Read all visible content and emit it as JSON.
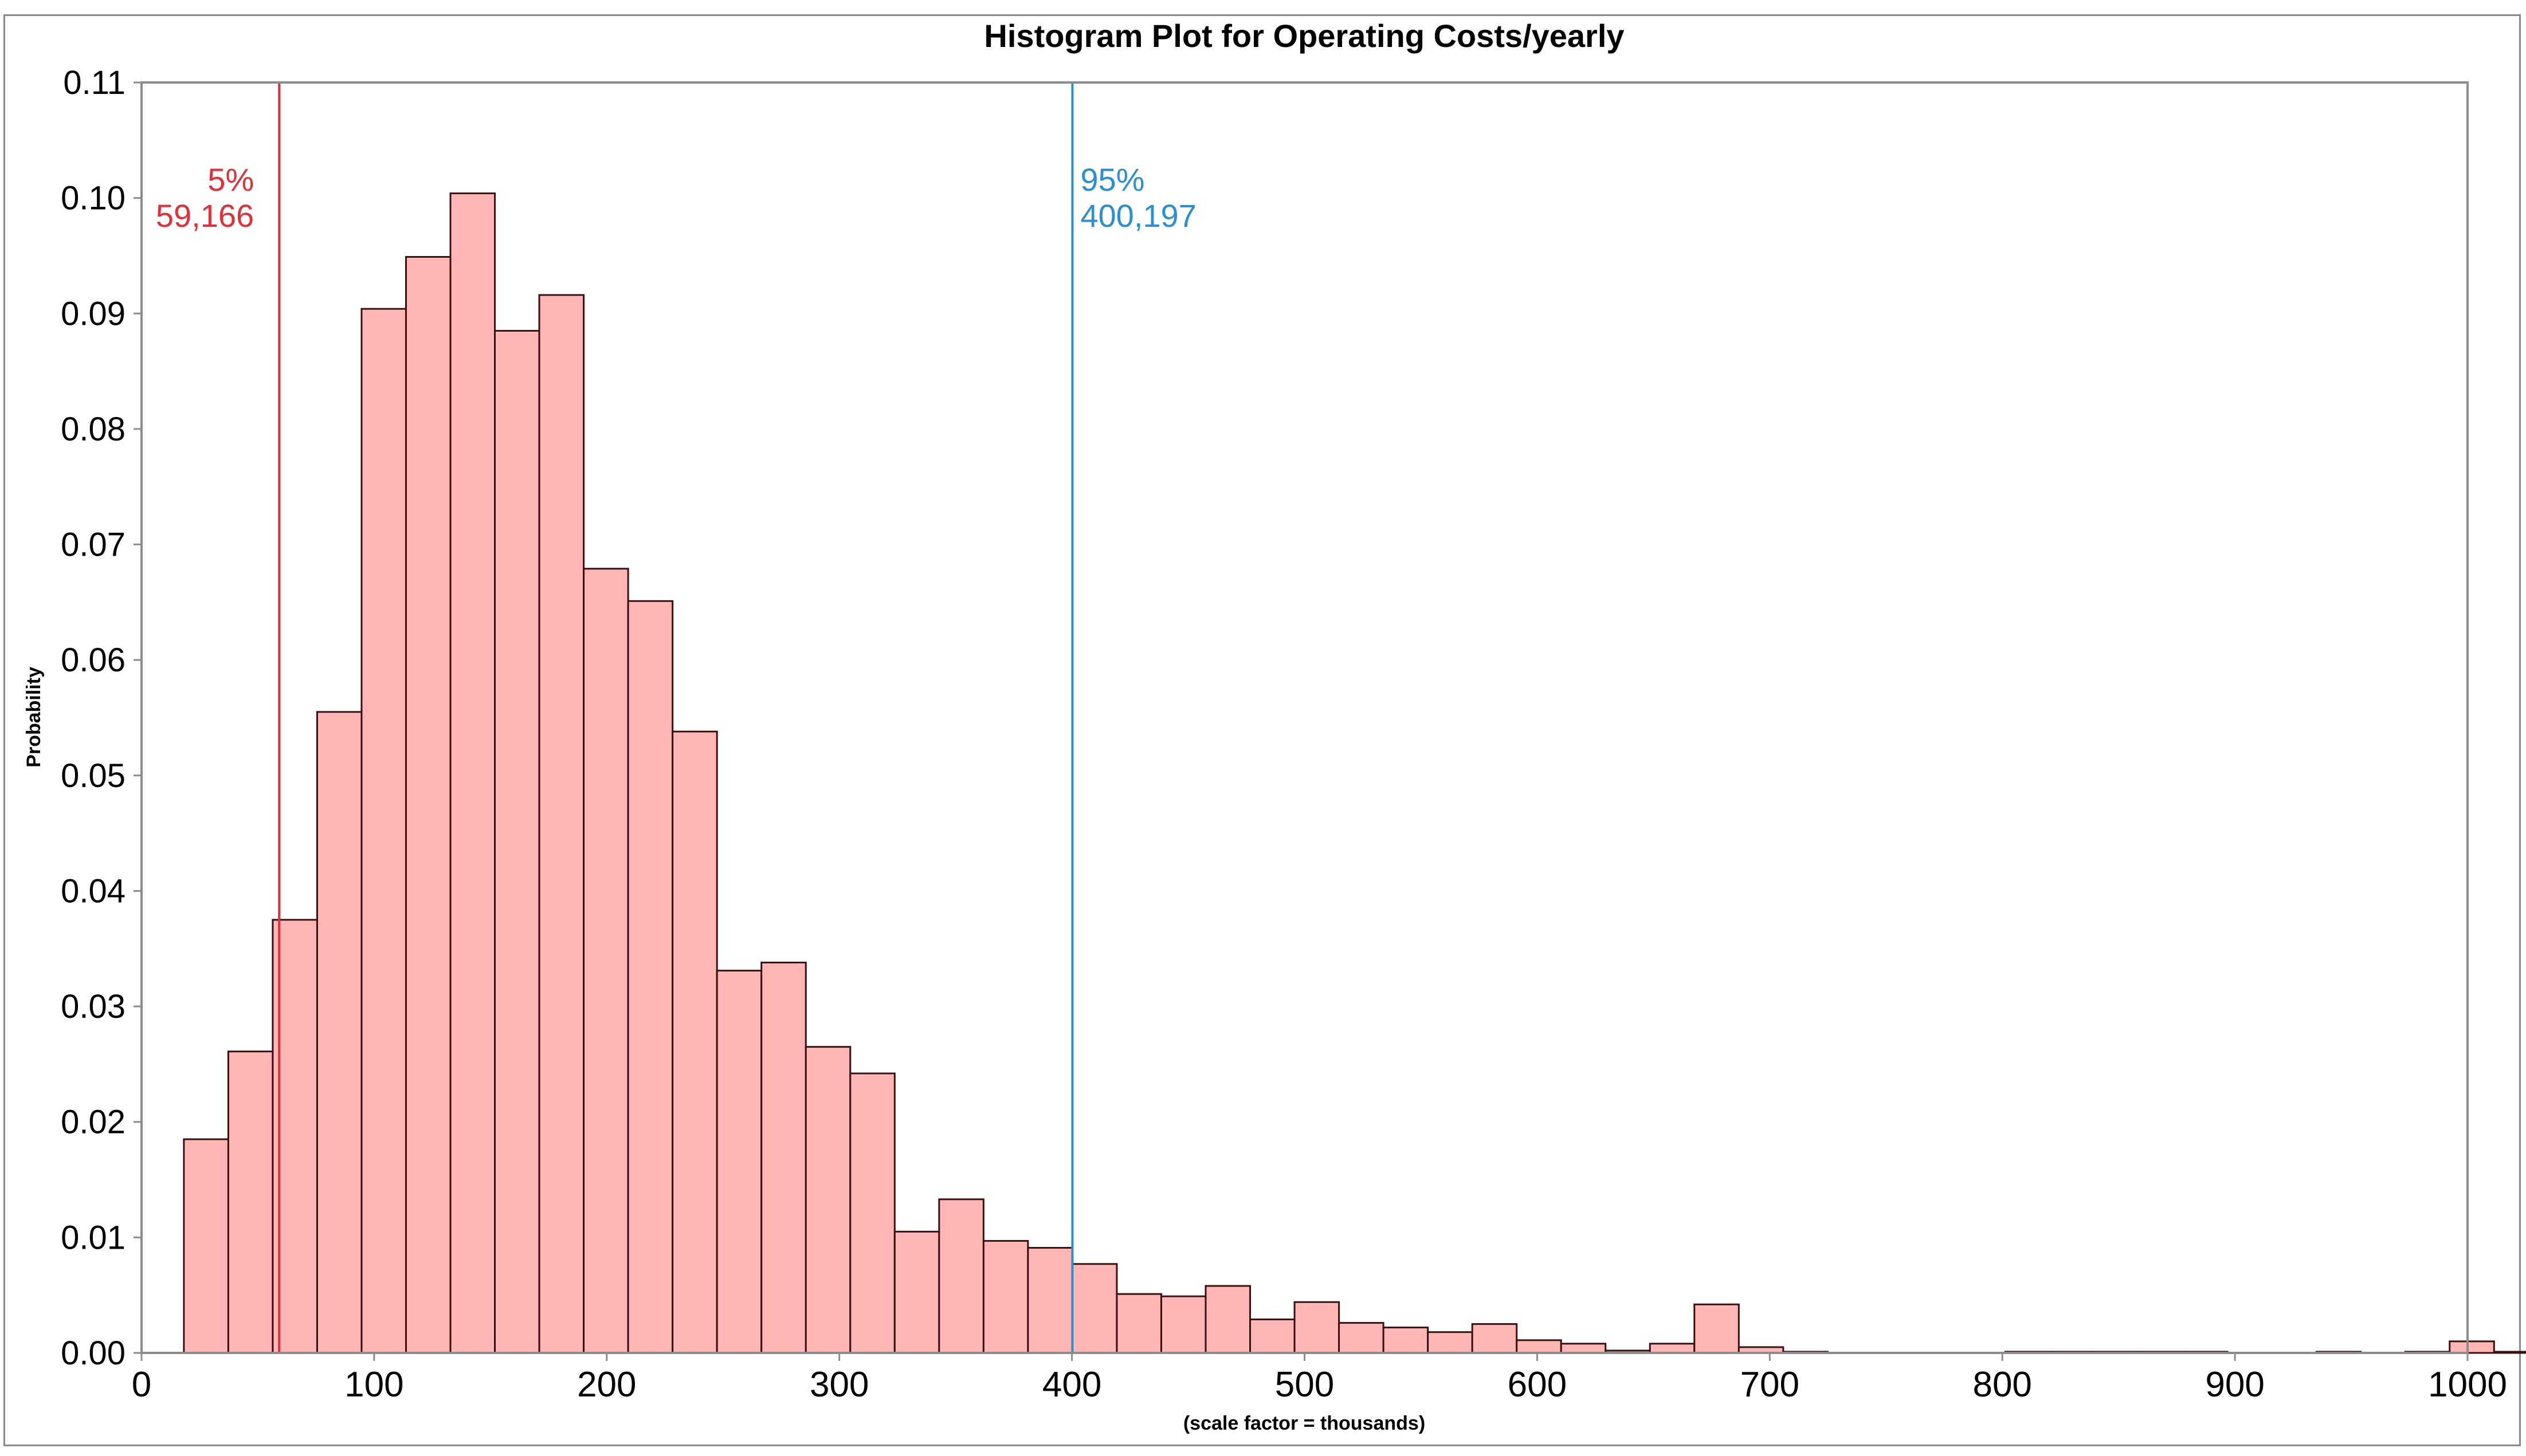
{
  "colors": {
    "bar_fill": "#ffb6b5",
    "bar_stroke": "#3a1010",
    "axis": "#8c8c8c",
    "p5_line": "#e0303a",
    "p95_line": "#2c8fcf"
  },
  "chart_data": {
    "type": "bar",
    "title": "Histogram Plot for Operating Costs/yearly",
    "xlabel": "(scale factor = thousands)",
    "ylabel": "Probability",
    "xlim": [
      0,
      1000
    ],
    "ylim": [
      0,
      0.11
    ],
    "xticks": [
      "0",
      "100",
      "200",
      "300",
      "400",
      "500",
      "600",
      "700",
      "800",
      "900",
      "1000"
    ],
    "yticks": [
      "0.00",
      "0.01",
      "0.02",
      "0.03",
      "0.04",
      "0.05",
      "0.06",
      "0.07",
      "0.08",
      "0.09",
      "0.10",
      "0.11"
    ],
    "bin_width": 19.1,
    "bin_start": 18.2,
    "values": [
      0.0185,
      0.0261,
      0.0375,
      0.0555,
      0.0904,
      0.0949,
      0.1004,
      0.0885,
      0.0916,
      0.0679,
      0.0651,
      0.0538,
      0.0331,
      0.0338,
      0.0265,
      0.0242,
      0.0105,
      0.0133,
      0.0097,
      0.0091,
      0.0077,
      0.0051,
      0.0049,
      0.0058,
      0.0029,
      0.0044,
      0.0026,
      0.0022,
      0.0018,
      0.0025,
      0.0011,
      0.0008,
      0.0002,
      0.0008,
      0.0042,
      0.0005,
      0.0001,
      0.0,
      0.0,
      0.0,
      0.0,
      0.0001,
      0.0001,
      0.0001,
      0.0001,
      0.0001,
      0.0,
      0.0,
      0.0001,
      0.0,
      0.0001,
      0.001,
      0.0001
    ],
    "percentiles": [
      {
        "name": "p5",
        "value": 59.166,
        "pct": "5%",
        "label": "59,166"
      },
      {
        "name": "p95",
        "value": 400.197,
        "pct": "95%",
        "label": "400,197"
      }
    ]
  }
}
